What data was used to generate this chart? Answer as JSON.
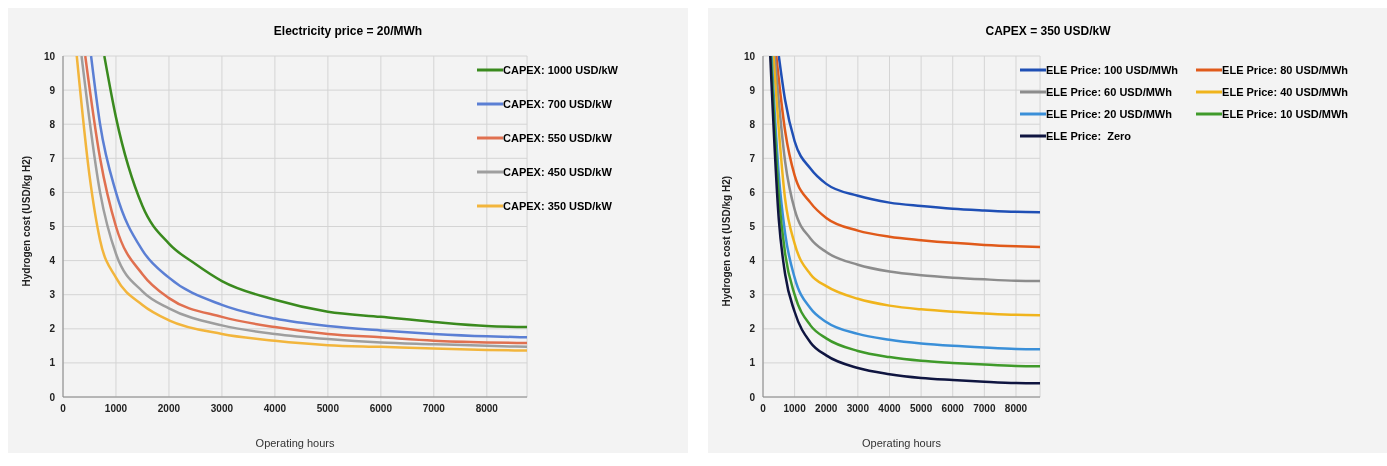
{
  "chart_data": [
    {
      "type": "line",
      "title": "Electricity price = 20/MWh",
      "xlabel": "Operating hours",
      "ylabel": "Hydrogen cost (USD/kg H2)",
      "xlim": [
        0,
        8760
      ],
      "xticks": [
        0,
        1000,
        2000,
        3000,
        4000,
        5000,
        6000,
        7000,
        8000
      ],
      "ylim": [
        0,
        10
      ],
      "yticks": [
        0,
        1,
        2,
        3,
        4,
        5,
        6,
        7,
        8,
        9,
        10
      ],
      "grid": true,
      "legend": "top right",
      "marker": "none",
      "line_style": "solid",
      "series": [
        {
          "name": "CAPEX: 1000 USD/kW",
          "color": "#3a8a1e",
          "x": [
            780,
            1000,
            1500,
            2000,
            2500,
            3000,
            4000,
            5000,
            6000,
            7000,
            8000,
            8760
          ],
          "values": [
            10,
            8.2,
            5.6,
            4.5,
            3.9,
            3.4,
            2.85,
            2.5,
            2.35,
            2.2,
            2.08,
            2.05
          ]
        },
        {
          "name": "CAPEX: 700 USD/kW",
          "color": "#5b7fd4",
          "x": [
            530,
            700,
            1000,
            1500,
            2000,
            3000,
            4000,
            5000,
            6000,
            7000,
            8000,
            8760
          ],
          "values": [
            10,
            8,
            6,
            4.3,
            3.5,
            2.7,
            2.3,
            2.08,
            1.95,
            1.85,
            1.78,
            1.75
          ]
        },
        {
          "name": "CAPEX: 550 USD/kW",
          "color": "#e07050",
          "x": [
            420,
            700,
            1000,
            1500,
            2000,
            3000,
            4000,
            5000,
            6000,
            7000,
            8000,
            8760
          ],
          "values": [
            10,
            7,
            5,
            3.6,
            2.9,
            2.35,
            2.05,
            1.85,
            1.75,
            1.65,
            1.6,
            1.58
          ]
        },
        {
          "name": "CAPEX: 450 USD/kW",
          "color": "#9e9e9e",
          "x": [
            350,
            700,
            1000,
            1500,
            2000,
            3000,
            4000,
            5000,
            6000,
            7000,
            8000,
            8760
          ],
          "values": [
            10,
            6,
            4.2,
            3.1,
            2.6,
            2.1,
            1.85,
            1.7,
            1.6,
            1.55,
            1.5,
            1.47
          ]
        },
        {
          "name": "CAPEX: 350 USD/kW",
          "color": "#f2b53c",
          "x": [
            260,
            500,
            700,
            1000,
            1500,
            2000,
            3000,
            4000,
            5000,
            6000,
            7000,
            8000,
            8760
          ],
          "values": [
            10,
            6.5,
            4.6,
            3.5,
            2.7,
            2.25,
            1.85,
            1.65,
            1.52,
            1.47,
            1.42,
            1.38,
            1.36
          ]
        }
      ]
    },
    {
      "type": "line",
      "title": "CAPEX = 350 USD/kW",
      "xlabel": "Operating hours",
      "ylabel": "Hydrogen cost (USD/kg H2)",
      "xlim": [
        0,
        8760
      ],
      "xticks": [
        0,
        1000,
        2000,
        3000,
        4000,
        5000,
        6000,
        7000,
        8000
      ],
      "ylim": [
        0,
        10
      ],
      "yticks": [
        0,
        1,
        2,
        3,
        4,
        5,
        6,
        7,
        8,
        9,
        10
      ],
      "grid": true,
      "legend": "top right",
      "marker": "none",
      "line_style": "solid",
      "series": [
        {
          "name": "ELE Price: 100 USD/MWh",
          "color": "#1f4fb5",
          "x": [
            500,
            700,
            1000,
            1500,
            2000,
            3000,
            4000,
            5000,
            6000,
            7000,
            8000,
            8760
          ],
          "values": [
            10,
            8.7,
            7.5,
            6.7,
            6.25,
            5.9,
            5.7,
            5.6,
            5.52,
            5.47,
            5.43,
            5.42
          ]
        },
        {
          "name": "ELE Price: 80 USD/MWh",
          "color": "#e05a1a",
          "x": [
            420,
            700,
            1000,
            1500,
            2000,
            3000,
            4000,
            5000,
            6000,
            7000,
            8000,
            8760
          ],
          "values": [
            10,
            7.8,
            6.5,
            5.7,
            5.25,
            4.88,
            4.7,
            4.6,
            4.52,
            4.46,
            4.42,
            4.4
          ]
        },
        {
          "name": "ELE Price: 60 USD/MWh",
          "color": "#8c8c8c",
          "x": [
            370,
            700,
            1000,
            1500,
            2000,
            3000,
            4000,
            5000,
            6000,
            7000,
            8000,
            8760
          ],
          "values": [
            10,
            6.9,
            5.5,
            4.65,
            4.25,
            3.88,
            3.68,
            3.57,
            3.5,
            3.45,
            3.41,
            3.4
          ]
        },
        {
          "name": "ELE Price: 40 USD/MWh",
          "color": "#f0b41c",
          "x": [
            330,
            700,
            1000,
            1500,
            2000,
            3000,
            4000,
            5000,
            6000,
            7000,
            8000,
            8760
          ],
          "values": [
            10,
            5.8,
            4.5,
            3.6,
            3.25,
            2.88,
            2.68,
            2.57,
            2.5,
            2.45,
            2.41,
            2.4
          ]
        },
        {
          "name": "ELE Price: 20 USD/MWh",
          "color": "#3a8fd8",
          "x": [
            270,
            500,
            700,
            1000,
            1500,
            2000,
            3000,
            4000,
            5000,
            6000,
            7000,
            8000,
            8760
          ],
          "values": [
            10,
            6.5,
            4.8,
            3.5,
            2.6,
            2.2,
            1.85,
            1.68,
            1.57,
            1.5,
            1.45,
            1.41,
            1.4
          ]
        },
        {
          "name": "ELE Price: 10 USD/MWh",
          "color": "#3f9a2a",
          "x": [
            250,
            500,
            700,
            1000,
            1500,
            2000,
            3000,
            4000,
            5000,
            6000,
            7000,
            8000,
            8760
          ],
          "values": [
            10,
            5.9,
            4.2,
            3,
            2.1,
            1.72,
            1.35,
            1.17,
            1.06,
            1,
            0.95,
            0.91,
            0.9
          ]
        },
        {
          "name": "ELE Price:  Zero",
          "color": "#0f1540",
          "x": [
            230,
            500,
            700,
            1000,
            1500,
            2000,
            3000,
            4000,
            5000,
            6000,
            7000,
            8000,
            8760
          ],
          "values": [
            10,
            5.2,
            3.6,
            2.5,
            1.6,
            1.22,
            0.85,
            0.67,
            0.56,
            0.5,
            0.45,
            0.41,
            0.4
          ]
        }
      ]
    }
  ]
}
